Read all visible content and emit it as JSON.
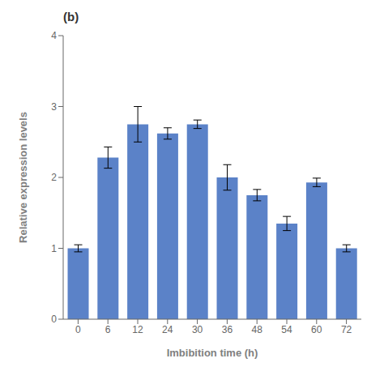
{
  "chart_data": {
    "type": "bar",
    "title": "(b)",
    "xlabel": "Imbibition time (h)",
    "ylabel": "Relative expression levels",
    "categories": [
      "0",
      "6",
      "12",
      "24",
      "30",
      "36",
      "48",
      "54",
      "60",
      "72"
    ],
    "values": [
      1.0,
      2.28,
      2.75,
      2.62,
      2.75,
      2.0,
      1.75,
      1.35,
      1.93,
      1.0
    ],
    "errors": [
      0.05,
      0.15,
      0.25,
      0.08,
      0.06,
      0.18,
      0.08,
      0.1,
      0.06,
      0.05
    ],
    "color": "#5b82c8",
    "ylim": [
      0,
      4
    ],
    "yticks": [
      0,
      1,
      2,
      3,
      4
    ],
    "grid": false
  }
}
